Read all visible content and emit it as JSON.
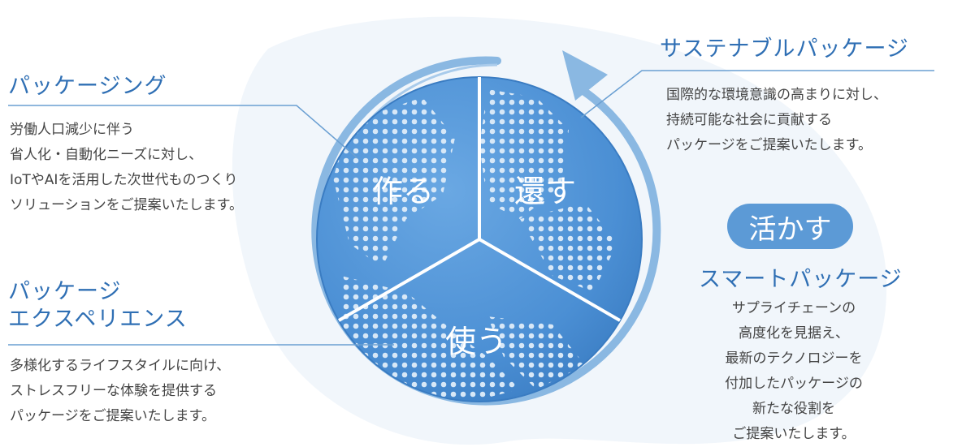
{
  "colors": {
    "accent": "#2f6fb4",
    "globe": "#4b8fd4",
    "globe_dark": "#2d6cb3",
    "arrow": "#8ab8e2",
    "pill": "#5c9ad6",
    "text": "#444444"
  },
  "packaging": {
    "title": "パッケージング",
    "lines": [
      "労働人口減少に伴う",
      "省人化・自動化ニーズに対し、",
      "IoTやAIを活用した次世代ものつくり",
      "ソリューションをご提案いたします。"
    ]
  },
  "experience": {
    "title_lines": [
      "パッケージ",
      "エクスペリエンス"
    ],
    "lines": [
      "多様化するライフスタイルに向け、",
      "ストレスフリーな体験を提供する",
      "パッケージをご提案いたします。"
    ]
  },
  "sustainable": {
    "title": "サステナブルパッケージ",
    "lines": [
      "国際的な環境意識の高まりに対し、",
      "持続可能な社会に貢献する",
      "パッケージをご提案いたします。"
    ]
  },
  "smart": {
    "badge": "活かす",
    "title": "スマートパッケージ",
    "lines": [
      "サプライチェーンの",
      "高度化を見据え、",
      "最新のテクノロジーを",
      "付加したパッケージの",
      "新たな役割を",
      "ご提案いたします。"
    ]
  },
  "globe": {
    "segments": [
      "作る",
      "還す",
      "使う"
    ]
  }
}
